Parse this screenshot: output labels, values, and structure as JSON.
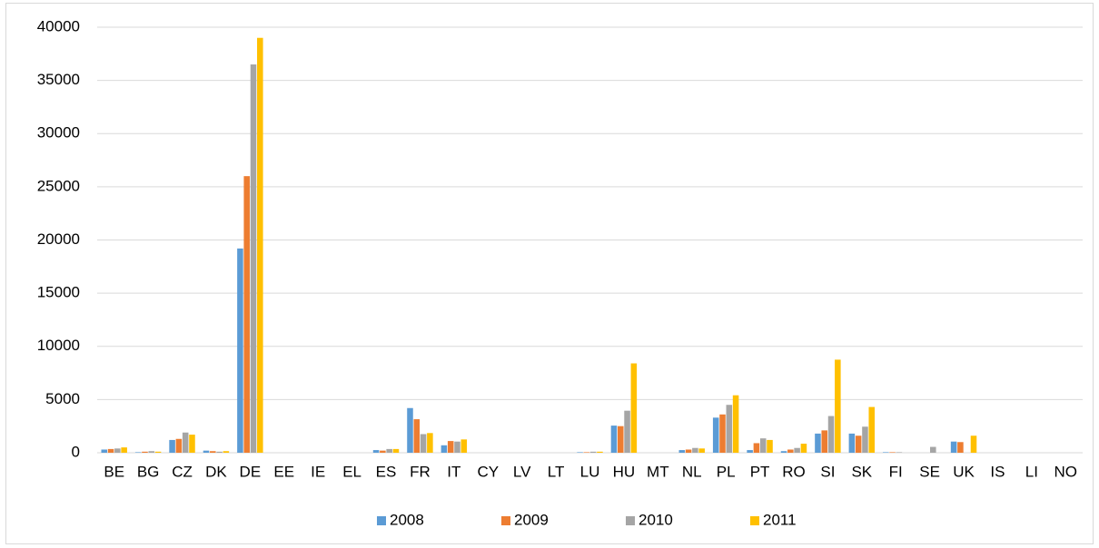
{
  "chart_data": {
    "type": "bar",
    "categories": [
      "BE",
      "BG",
      "CZ",
      "DK",
      "DE",
      "EE",
      "IE",
      "EL",
      "ES",
      "FR",
      "IT",
      "CY",
      "LV",
      "LT",
      "LU",
      "HU",
      "MT",
      "NL",
      "PL",
      "PT",
      "RO",
      "SI",
      "SK",
      "FI",
      "SE",
      "UK",
      "IS",
      "LI",
      "NO"
    ],
    "series": [
      {
        "name": "2008",
        "color": "#5b9bd5",
        "values": [
          300,
          50,
          1200,
          200,
          19200,
          0,
          0,
          0,
          250,
          4200,
          700,
          0,
          0,
          0,
          50,
          2550,
          0,
          250,
          3300,
          250,
          150,
          1800,
          1800,
          50,
          0,
          1050,
          0,
          0,
          0
        ]
      },
      {
        "name": "2009",
        "color": "#ed7d31",
        "values": [
          350,
          100,
          1300,
          150,
          26000,
          0,
          0,
          0,
          200,
          3150,
          1100,
          0,
          0,
          0,
          50,
          2500,
          0,
          300,
          3600,
          900,
          300,
          2100,
          1600,
          50,
          0,
          1000,
          0,
          0,
          0
        ]
      },
      {
        "name": "2010",
        "color": "#a5a5a5",
        "values": [
          400,
          150,
          1900,
          100,
          36500,
          0,
          0,
          0,
          350,
          1750,
          1050,
          0,
          0,
          0,
          100,
          3950,
          0,
          450,
          4500,
          1350,
          450,
          3450,
          2450,
          50,
          550,
          0,
          0,
          0,
          0
        ]
      },
      {
        "name": "2011",
        "color": "#ffc000",
        "values": [
          500,
          100,
          1700,
          150,
          39000,
          0,
          0,
          0,
          350,
          1850,
          1250,
          0,
          0,
          0,
          100,
          8400,
          0,
          400,
          5400,
          1200,
          850,
          8750,
          4300,
          0,
          0,
          1600,
          0,
          0,
          0
        ]
      }
    ],
    "ylim": [
      0,
      40000
    ],
    "yticks": [
      0,
      5000,
      10000,
      15000,
      20000,
      25000,
      30000,
      35000,
      40000
    ],
    "grid": true,
    "legend": "bottom"
  }
}
